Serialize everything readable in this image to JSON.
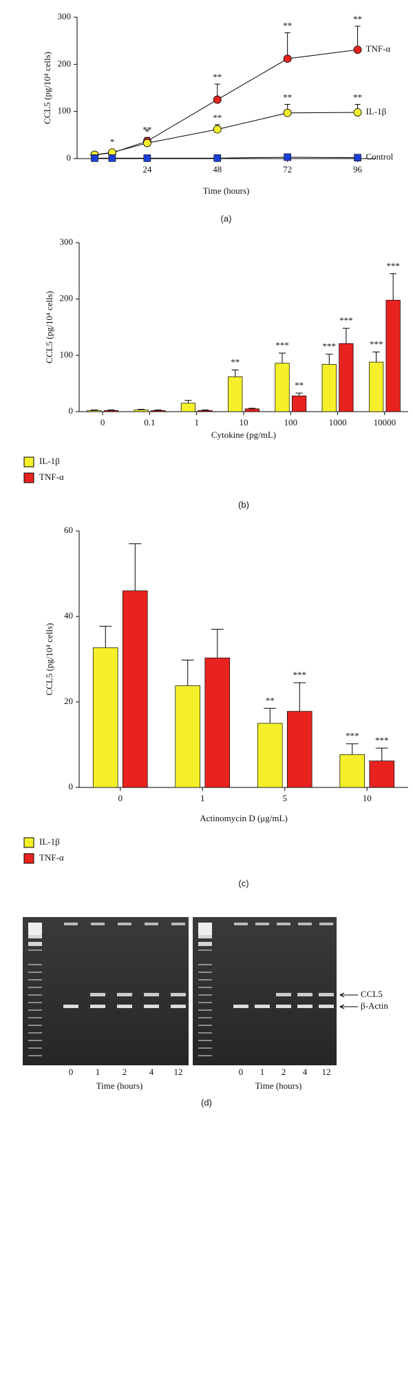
{
  "chart_data": [
    {
      "type": "line",
      "panel_label": "(a)",
      "xlabel": "Time (hours)",
      "ylabel": "CCL5 (pg/10⁴ cells)",
      "x": [
        6,
        12,
        24,
        48,
        72,
        96
      ],
      "xlim": [
        0,
        102
      ],
      "xticks": [
        24,
        48,
        72,
        96
      ],
      "ylim": [
        0,
        300
      ],
      "yticks": [
        0,
        100,
        200,
        300
      ],
      "legend": "line-end",
      "series": [
        {
          "name": "TNF-α",
          "color": "#e8231f",
          "marker": "circle",
          "values": [
            8,
            12,
            37,
            125,
            212,
            231
          ],
          "errors": [
            2,
            3,
            8,
            33,
            55,
            50
          ],
          "annotations": [
            null,
            "*",
            "**",
            "**",
            "**",
            "**"
          ]
        },
        {
          "name": "IL-1β",
          "color": "#f5f02a",
          "marker": "circle",
          "values": [
            8,
            13,
            33,
            62,
            97,
            98
          ],
          "errors": [
            2,
            3,
            5,
            10,
            18,
            17
          ],
          "annotations": [
            null,
            null,
            "*",
            "**",
            "**",
            "**"
          ]
        },
        {
          "name": "Control",
          "color": "#1a3fd6",
          "marker": "square",
          "values": [
            1,
            1,
            1,
            1,
            3,
            2
          ],
          "errors": [
            0,
            0,
            0,
            0,
            0,
            0
          ],
          "annotations": [
            null,
            null,
            null,
            null,
            null,
            null
          ]
        }
      ]
    },
    {
      "type": "bar",
      "panel_label": "(b)",
      "xlabel": "Cytokine (pg/mL)",
      "ylabel": "CCL5 (pg/10⁴ cells)",
      "categories": [
        "0",
        "0.1",
        "1",
        "10",
        "100",
        "1000",
        "10000"
      ],
      "ylim": [
        0,
        300
      ],
      "yticks": [
        0,
        100,
        200,
        300
      ],
      "legend": "below-left",
      "series": [
        {
          "name": "IL-1β",
          "color": "#f5f02a",
          "values": [
            2,
            3,
            15,
            62,
            86,
            84,
            88
          ],
          "errors": [
            1,
            1,
            5,
            12,
            18,
            18,
            18
          ],
          "annotations": [
            null,
            null,
            null,
            "**",
            "***",
            "***",
            "***"
          ]
        },
        {
          "name": "TNF-α",
          "color": "#e8231f",
          "values": [
            2,
            2,
            2,
            5,
            28,
            121,
            198
          ],
          "errors": [
            1,
            1,
            1,
            1,
            5,
            27,
            47
          ],
          "annotations": [
            null,
            null,
            null,
            null,
            "**",
            "***",
            "***"
          ]
        }
      ]
    },
    {
      "type": "bar",
      "panel_label": "(c)",
      "xlabel": "Actinomycin D (μg/mL)",
      "ylabel": "CCL5 (pg/10⁴ cells)",
      "categories": [
        "0",
        "1",
        "5",
        "10"
      ],
      "ylim": [
        0,
        60
      ],
      "yticks": [
        0,
        20,
        40,
        60
      ],
      "legend": "below-left",
      "series": [
        {
          "name": "IL-1β",
          "color": "#f5f02a",
          "values": [
            32.7,
            23.8,
            15,
            7.7
          ],
          "errors": [
            5,
            6,
            3.5,
            2.5
          ],
          "annotations": [
            null,
            null,
            "**",
            "***"
          ]
        },
        {
          "name": "TNF-α",
          "color": "#e8231f",
          "values": [
            46,
            30.3,
            17.8,
            6.2
          ],
          "errors": [
            11,
            6.7,
            6.7,
            3
          ],
          "annotations": [
            null,
            null,
            "***",
            "***"
          ]
        }
      ]
    }
  ],
  "gel": {
    "panel_label": "(d)",
    "bands": [
      "CCL5",
      "β-Actin"
    ],
    "panels": [
      {
        "lanes": [
          "0",
          "1",
          "2",
          "4",
          "12"
        ],
        "xlabel": "Time (hours)"
      },
      {
        "lanes": [
          "0",
          "1",
          "2",
          "4",
          "12"
        ],
        "xlabel": "Time (hours)"
      }
    ]
  }
}
